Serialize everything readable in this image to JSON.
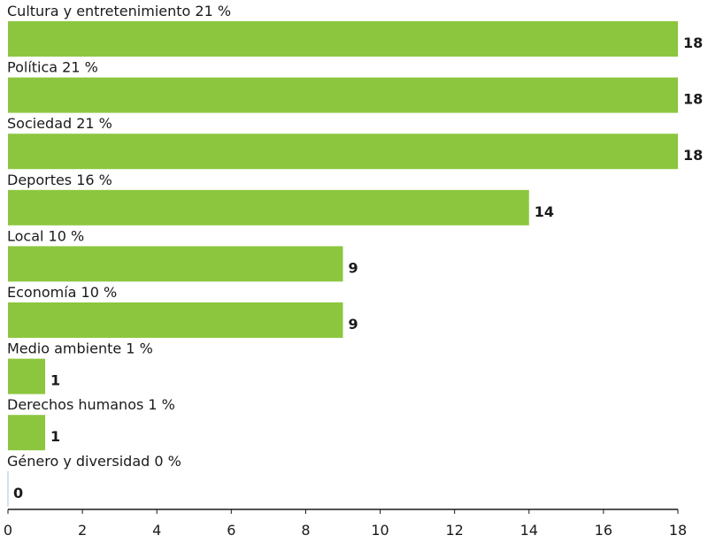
{
  "chart_data": {
    "type": "bar",
    "orientation": "horizontal",
    "categories": [
      "Cultura y entretenimiento 21 %",
      "Política 21 %",
      "Sociedad 21 %",
      "Deportes 16 %",
      "Local 10 %",
      "Economía 10 %",
      "Medio ambiente 1 %",
      "Derechos humanos 1 %",
      "Género y diversidad 0 %"
    ],
    "values": [
      18,
      18,
      18,
      14,
      9,
      9,
      1,
      1,
      0
    ],
    "xlim": [
      0,
      18
    ],
    "xticks": [
      0,
      2,
      4,
      6,
      8,
      10,
      12,
      14,
      16,
      18
    ],
    "grid": false,
    "bar_color": "#8cc63f",
    "axis_color": "#1a1a1a"
  }
}
